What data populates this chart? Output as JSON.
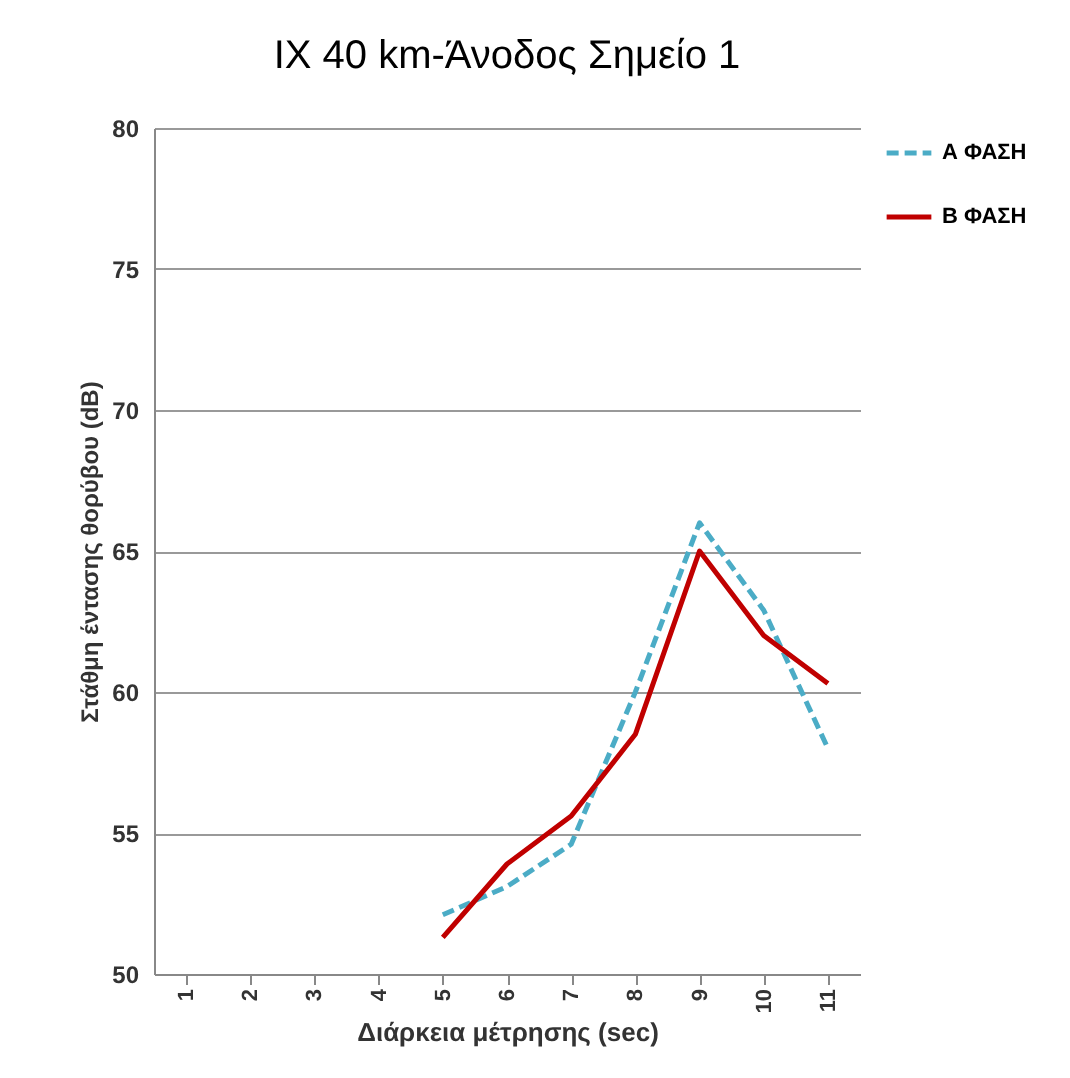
{
  "chart_data": {
    "type": "line",
    "title": "IX 40 km-Άνοδος Σημείο 1",
    "xlabel": "Διάρκεια μέτρησης (sec)",
    "ylabel": "Στάθμη έντασης θορύβου (dB)",
    "categories": [
      "1",
      "2",
      "3",
      "4",
      "5",
      "6",
      "7",
      "8",
      "9",
      "10",
      "11"
    ],
    "series": [
      {
        "name": "Α ΦΑΣΗ",
        "color": "#4bacc6",
        "line_style": "dashed",
        "values": [
          null,
          null,
          null,
          null,
          52.1,
          53.1,
          54.6,
          60,
          66,
          62.9,
          58
        ]
      },
      {
        "name": "Β ΦΑΣΗ",
        "color": "#c00000",
        "line_style": "solid",
        "values": [
          null,
          null,
          null,
          null,
          51.3,
          53.9,
          55.6,
          58.5,
          65,
          62,
          60.3
        ]
      }
    ],
    "ylim": [
      50,
      80
    ],
    "yticks": [
      50,
      55,
      60,
      65,
      70,
      75,
      80
    ],
    "grid": "y",
    "legend": "right",
    "marker": "none"
  }
}
